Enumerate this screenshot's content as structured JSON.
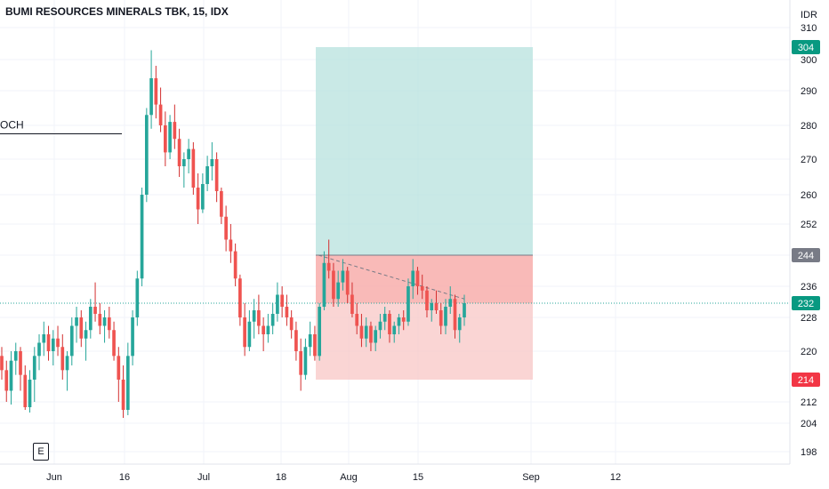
{
  "header": {
    "title": "BUMI RESOURCES MINERALS TBK, 15, IDX"
  },
  "badge": {
    "label": "E"
  },
  "colors": {
    "up": "#26a69a",
    "down": "#ef5350",
    "wick_up": "#26a69a",
    "wick_down": "#d32f2f",
    "target_zone": "#b2dfdb",
    "stop_zone": "#f8c7c5",
    "last_price_line": "#26a69a",
    "badge_green": "#089981",
    "badge_red": "#f23645",
    "badge_gray": "#787b86"
  },
  "chart_data": {
    "type": "candlestick",
    "title": "BUMI RESOURCES MINERALS TBK, 15, IDX",
    "currency_label": "IDX",
    "y_unit": "IDR",
    "y_ticks": [
      198,
      204,
      212,
      220,
      228,
      236,
      244,
      252,
      260,
      270,
      280,
      290,
      300,
      310
    ],
    "x_ticks": [
      "Jun",
      "16",
      "Jul",
      "18",
      "Aug",
      "15",
      "Sep",
      "12"
    ],
    "price_badges": [
      {
        "label": "304",
        "value": 304,
        "kind": "target"
      },
      {
        "label": "244",
        "value": 244,
        "kind": "entry"
      },
      {
        "label": "232",
        "value": 232,
        "kind": "last"
      },
      {
        "label": "214",
        "value": 214,
        "kind": "stop"
      }
    ],
    "annotation": {
      "text": "OCH",
      "level": 277.5
    },
    "position": {
      "entry": 244,
      "target": 304,
      "stop": 214
    },
    "trendline": {
      "from": 244,
      "to": 233
    },
    "candles": [
      [
        219,
        221,
        214,
        216
      ],
      [
        216,
        218,
        212,
        213
      ],
      [
        213,
        220,
        211,
        218
      ],
      [
        218,
        222,
        215,
        220
      ],
      [
        220,
        221,
        213,
        215
      ],
      [
        215,
        217,
        209,
        210
      ],
      [
        210,
        216,
        208,
        214
      ],
      [
        214,
        221,
        212,
        219
      ],
      [
        219,
        224,
        216,
        222
      ],
      [
        222,
        227,
        219,
        224
      ],
      [
        224,
        226,
        218,
        220
      ],
      [
        220,
        225,
        217,
        223
      ],
      [
        223,
        226,
        219,
        221
      ],
      [
        221,
        224,
        214,
        216
      ],
      [
        216,
        220,
        213,
        219
      ],
      [
        219,
        228,
        217,
        226
      ],
      [
        226,
        231,
        222,
        228
      ],
      [
        228,
        230,
        221,
        223
      ],
      [
        223,
        227,
        218,
        225
      ],
      [
        225,
        233,
        223,
        231
      ],
      [
        231,
        237,
        227,
        229
      ],
      [
        229,
        232,
        224,
        226
      ],
      [
        226,
        230,
        222,
        228
      ],
      [
        228,
        231,
        223,
        225
      ],
      [
        225,
        227,
        218,
        219
      ],
      [
        219,
        221,
        212,
        214
      ],
      [
        214,
        217,
        206,
        209
      ],
      [
        209,
        222,
        207,
        219
      ],
      [
        219,
        230,
        217,
        228
      ],
      [
        228,
        240,
        226,
        238
      ],
      [
        238,
        262,
        236,
        260
      ],
      [
        260,
        285,
        258,
        283
      ],
      [
        283,
        303,
        279,
        294
      ],
      [
        294,
        298,
        282,
        286
      ],
      [
        286,
        291,
        278,
        280
      ],
      [
        280,
        284,
        268,
        272
      ],
      [
        272,
        283,
        270,
        281
      ],
      [
        281,
        286,
        273,
        276
      ],
      [
        276,
        279,
        265,
        268
      ],
      [
        268,
        272,
        262,
        270
      ],
      [
        270,
        276,
        266,
        273
      ],
      [
        273,
        275,
        260,
        262
      ],
      [
        262,
        266,
        252,
        256
      ],
      [
        256,
        266,
        255,
        263
      ],
      [
        263,
        271,
        261,
        268
      ],
      [
        268,
        275,
        264,
        270
      ],
      [
        270,
        272,
        258,
        261
      ],
      [
        261,
        262,
        252,
        254
      ],
      [
        254,
        257,
        245,
        248
      ],
      [
        248,
        252,
        242,
        245
      ],
      [
        245,
        247,
        236,
        238
      ],
      [
        238,
        239,
        226,
        228
      ],
      [
        228,
        232,
        219,
        221
      ],
      [
        221,
        230,
        220,
        227
      ],
      [
        227,
        233,
        223,
        230
      ],
      [
        230,
        234,
        224,
        226
      ],
      [
        226,
        228,
        220,
        224
      ],
      [
        224,
        229,
        222,
        226
      ],
      [
        226,
        232,
        224,
        229
      ],
      [
        229,
        237,
        227,
        234
      ],
      [
        234,
        236,
        228,
        231
      ],
      [
        231,
        234,
        226,
        228
      ],
      [
        228,
        230,
        223,
        225
      ],
      [
        225,
        227,
        218,
        220
      ],
      [
        220,
        223,
        213,
        215
      ],
      [
        215,
        223,
        214,
        221
      ],
      [
        221,
        227,
        219,
        224
      ],
      [
        224,
        226,
        218,
        219
      ],
      [
        219,
        232,
        218,
        231
      ],
      [
        231,
        245,
        230,
        242
      ],
      [
        242,
        248,
        238,
        240
      ],
      [
        240,
        242,
        231,
        233
      ],
      [
        233,
        240,
        231,
        237
      ],
      [
        237,
        243,
        235,
        240
      ],
      [
        240,
        241,
        232,
        234
      ],
      [
        234,
        237,
        228,
        229
      ],
      [
        229,
        232,
        224,
        226
      ],
      [
        226,
        229,
        221,
        223
      ],
      [
        223,
        228,
        221,
        226
      ],
      [
        226,
        227,
        220,
        222
      ],
      [
        222,
        226,
        220,
        225
      ],
      [
        225,
        229,
        223,
        227
      ],
      [
        227,
        231,
        225,
        229
      ],
      [
        229,
        230,
        222,
        224
      ],
      [
        224,
        227,
        222,
        226
      ],
      [
        226,
        229,
        224,
        228
      ],
      [
        228,
        230,
        225,
        227
      ],
      [
        227,
        238,
        226,
        236
      ],
      [
        236,
        243,
        233,
        240
      ],
      [
        240,
        241,
        234,
        236
      ],
      [
        236,
        239,
        233,
        235
      ],
      [
        235,
        236,
        228,
        230
      ],
      [
        230,
        233,
        227,
        232
      ],
      [
        232,
        235,
        229,
        230
      ],
      [
        230,
        232,
        224,
        226
      ],
      [
        226,
        233,
        224,
        231
      ],
      [
        231,
        236,
        229,
        233
      ],
      [
        233,
        234,
        223,
        225
      ],
      [
        225,
        229,
        222,
        228
      ],
      [
        228,
        234,
        226,
        232
      ]
    ]
  }
}
